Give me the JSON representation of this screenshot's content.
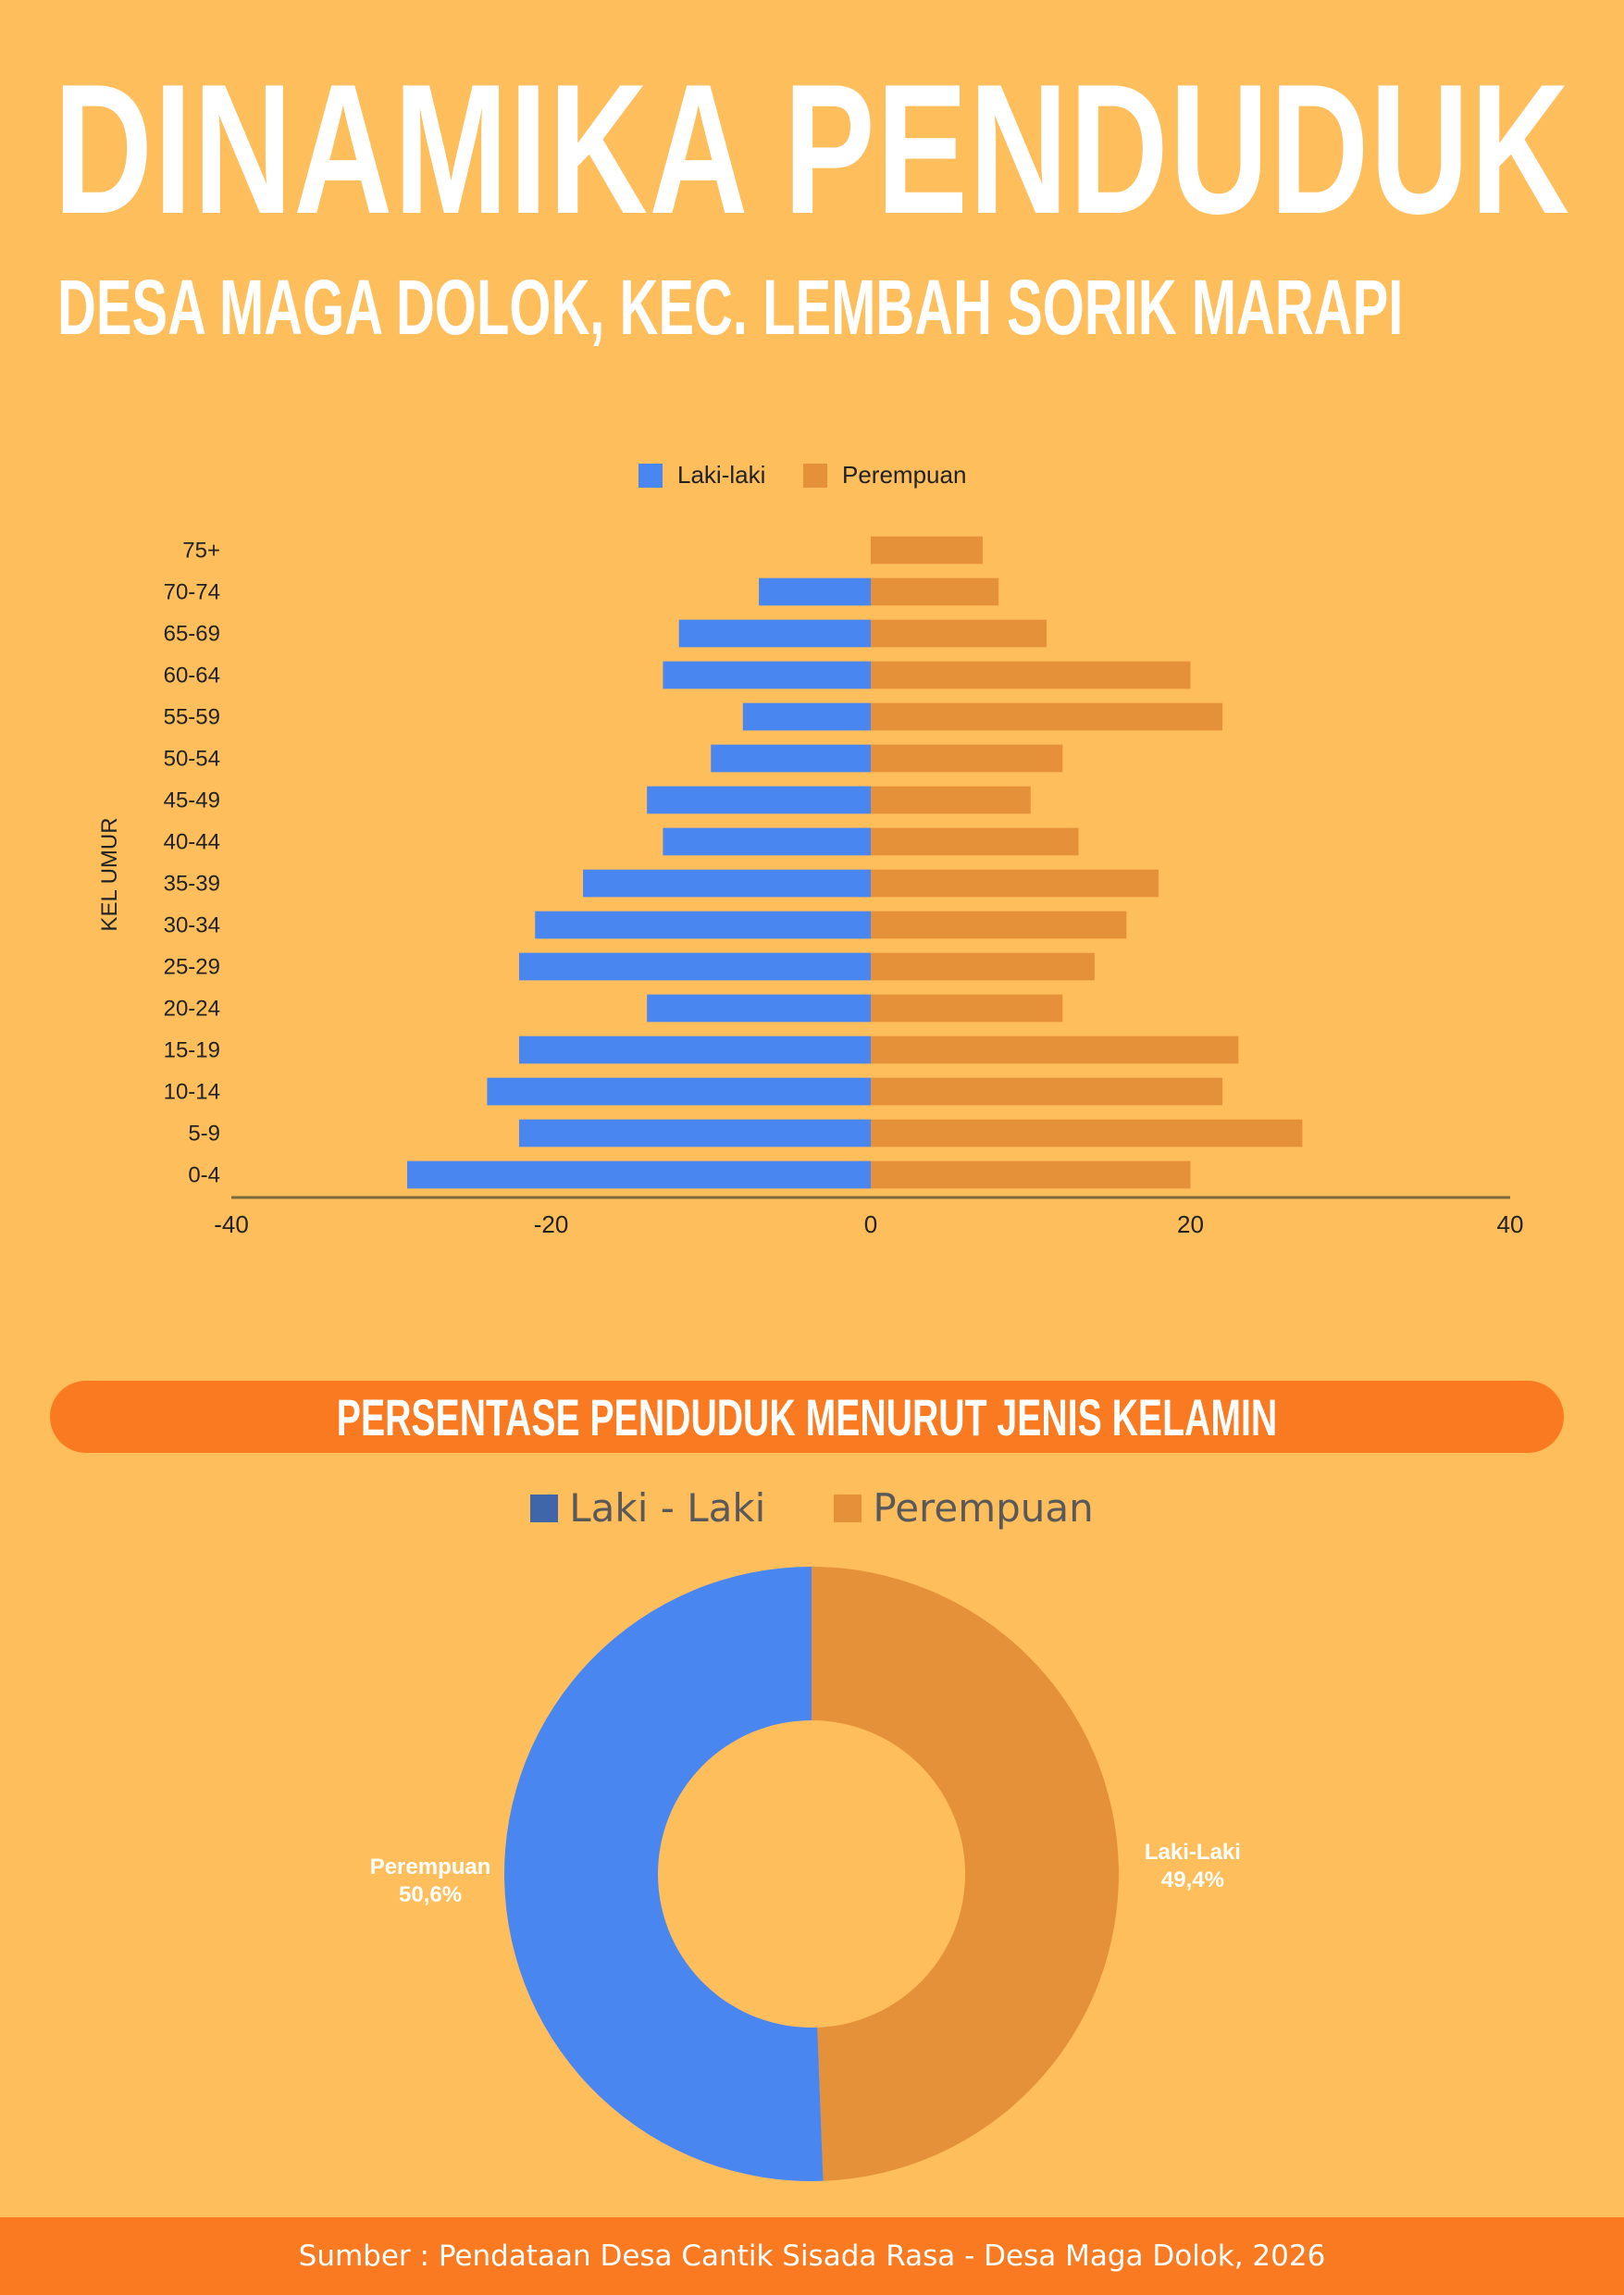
{
  "header": {
    "title": "DINAMIKA PENDUDUK",
    "subtitle": "DESA MAGA DOLOK, KEC. LEMBAH SORIK MARAPI"
  },
  "colors": {
    "background": "#FFBE5C",
    "male": "#4A86F0",
    "female": "#E5913A",
    "accent": "#FA7A21",
    "axis": "#7A6A3A"
  },
  "chart_data": [
    {
      "type": "bar",
      "orientation": "horizontal",
      "title": "",
      "xlabel": "",
      "ylabel": "KEL UMUR",
      "xlim": [
        -40,
        40
      ],
      "xticks": [
        "-40",
        "-20",
        "0",
        "20",
        "40"
      ],
      "legend_position": "top",
      "categories": [
        "75+",
        "70-74",
        "65-69",
        "60-64",
        "55-59",
        "50-54",
        "45-49",
        "40-44",
        "35-39",
        "30-34",
        "25-29",
        "20-24",
        "15-19",
        "10-14",
        "5-9",
        "0-4"
      ],
      "series": [
        {
          "name": "Laki-laki",
          "values": [
            0,
            -7,
            -12,
            -13,
            -8,
            -10,
            -14,
            -13,
            -18,
            -21,
            -22,
            -14,
            -22,
            -24,
            -22,
            -29
          ]
        },
        {
          "name": "Perempuan",
          "values": [
            7,
            8,
            11,
            20,
            22,
            12,
            10,
            13,
            18,
            16,
            14,
            12,
            23,
            22,
            27,
            20
          ]
        }
      ]
    },
    {
      "type": "pie",
      "title": "PERSENTASE PENDUDUK MENURUT JENIS KELAMIN",
      "donut": true,
      "legend_position": "top",
      "legend": [
        "Laki - Laki",
        "Perempuan"
      ],
      "slices": [
        {
          "label": "Laki-Laki",
          "value": 49.4,
          "value_text": "49,4%"
        },
        {
          "label": "Perempuan",
          "value": 50.6,
          "value_text": "50,6%"
        }
      ]
    }
  ],
  "footer": {
    "source": "Sumber : Pendataan Desa Cantik Sisada Rasa - Desa Maga Dolok, 2026"
  }
}
